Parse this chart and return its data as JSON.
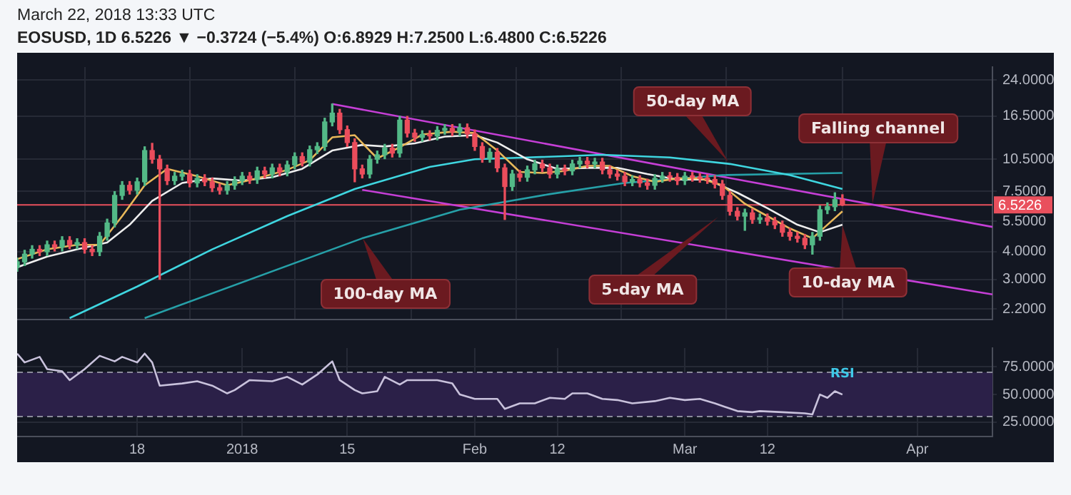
{
  "chart_data": [
    {
      "type": "candlestick",
      "title": "EOSUSD, 1D 6.5226 ▼ −0.3724 (−5.4%) O:6.8929 H:7.2500 L:6.4800 C:6.5226",
      "subtitle": "March 22, 2018 13:33 UTC",
      "log": true,
      "grid": true,
      "tick_labels": "y",
      "xlim": [
        "2017-12-02",
        "2018-04-11"
      ],
      "xticks": [
        {
          "value": "2017-12-18",
          "label": null
        },
        {
          "value": "2018-01-01",
          "label": null
        },
        {
          "value": "2018-01-15",
          "label": null
        },
        {
          "value": "2018-02-01",
          "label": null
        },
        {
          "value": "2018-02-12",
          "label": null
        },
        {
          "value": "2018-03-01",
          "label": null
        },
        {
          "value": "2018-03-12",
          "label": null
        },
        {
          "value": "2018-04-01",
          "label": null
        }
      ],
      "ylim": [
        1.97,
        27.5
      ],
      "yticks": [
        {
          "value": 24,
          "label": "24.0000"
        },
        {
          "value": 16.5,
          "label": "16.5000"
        },
        {
          "value": 10.5,
          "label": "10.5000"
        },
        {
          "value": 7.5,
          "label": "7.5000"
        },
        {
          "value": 5.5,
          "label": "5.5000"
        },
        {
          "value": 4,
          "label": "4.0000"
        },
        {
          "value": 3,
          "label": "3.0000"
        },
        {
          "value": 2.2,
          "label": "2.2000"
        }
      ],
      "ref_lines": [
        {
          "axis": "y",
          "value": 6.5226,
          "label": "6.5226",
          "color": "#e9505d"
        }
      ],
      "annotations": [
        "50-day MA",
        {
          "text": "Falling channel",
          "x": "2018-03-26",
          "y": 6.6
        },
        {
          "text": "100-day MA",
          "x": "2018-01-17",
          "y": 4.6
        },
        "5-day MA",
        {
          "text": "10-day MA",
          "x": "2018-03-22",
          "y": 5.3
        }
      ],
      "series": [
        {
          "type": "candlestick",
          "x": [
            "2017-12-02",
            "2017-12-03",
            "2017-12-04",
            "2017-12-05",
            "2017-12-06",
            "2017-12-07",
            "2017-12-08",
            "2017-12-09",
            "2017-12-10",
            "2017-12-11",
            "2017-12-12",
            "2017-12-13",
            "2017-12-14",
            "2017-12-15",
            "2017-12-16",
            "2017-12-17",
            "2017-12-18",
            "2017-12-19",
            "2017-12-20",
            "2017-12-21",
            "2017-12-22",
            "2017-12-23",
            "2017-12-24",
            "2017-12-25",
            "2017-12-26",
            "2017-12-27",
            "2017-12-28",
            "2017-12-29",
            "2017-12-30",
            "2017-12-31",
            "2018-01-01",
            "2018-01-02",
            "2018-01-03",
            "2018-01-04",
            "2018-01-05",
            "2018-01-06",
            "2018-01-07",
            "2018-01-08",
            "2018-01-09",
            "2018-01-10",
            "2018-01-11",
            "2018-01-12",
            "2018-01-13",
            "2018-01-14",
            "2018-01-15",
            "2018-01-16",
            "2018-01-17",
            "2018-01-18",
            "2018-01-19",
            "2018-01-20",
            "2018-01-21",
            "2018-01-22",
            "2018-01-23",
            "2018-01-24",
            "2018-01-25",
            "2018-01-26",
            "2018-01-27",
            "2018-01-28",
            "2018-01-29",
            "2018-01-30",
            "2018-01-31",
            "2018-02-01",
            "2018-02-02",
            "2018-02-03",
            "2018-02-04",
            "2018-02-05",
            "2018-02-06",
            "2018-02-07",
            "2018-02-08",
            "2018-02-09",
            "2018-02-10",
            "2018-02-11",
            "2018-02-12",
            "2018-02-13",
            "2018-02-14",
            "2018-02-15",
            "2018-02-16",
            "2018-02-17",
            "2018-02-18",
            "2018-02-19",
            "2018-02-20",
            "2018-02-21",
            "2018-02-22",
            "2018-02-23",
            "2018-02-24",
            "2018-02-25",
            "2018-02-26",
            "2018-02-27",
            "2018-02-28",
            "2018-03-01",
            "2018-03-02",
            "2018-03-03",
            "2018-03-04",
            "2018-03-05",
            "2018-03-06",
            "2018-03-07",
            "2018-03-08",
            "2018-03-09",
            "2018-03-10",
            "2018-03-11",
            "2018-03-12",
            "2018-03-13",
            "2018-03-14",
            "2018-03-15",
            "2018-03-16",
            "2018-03-17",
            "2018-03-18",
            "2018-03-19",
            "2018-03-20",
            "2018-03-21",
            "2018-03-22"
          ],
          "ohlc": [
            [
              3.4,
              3.74,
              3.26,
              3.6
            ],
            [
              3.6,
              4.06,
              3.46,
              3.9
            ],
            [
              3.9,
              4.26,
              3.74,
              4.1
            ],
            [
              4.1,
              4.26,
              3.84,
              4.0
            ],
            [
              4.0,
              4.47,
              3.84,
              4.3
            ],
            [
              4.3,
              4.47,
              4.03,
              4.2
            ],
            [
              4.2,
              4.68,
              4.03,
              4.5
            ],
            [
              4.5,
              4.68,
              4.13,
              4.3
            ],
            [
              4.3,
              4.58,
              4.13,
              4.4
            ],
            [
              4.4,
              4.58,
              3.94,
              4.1
            ],
            [
              4.1,
              4.26,
              3.84,
              4.0
            ],
            [
              4.0,
              4.89,
              3.84,
              4.7
            ],
            [
              4.7,
              5.62,
              4.51,
              5.4
            ],
            [
              5.4,
              7.49,
              5.18,
              7.2
            ],
            [
              7.2,
              8.32,
              6.91,
              8.0
            ],
            [
              8.0,
              8.32,
              7.3,
              7.6
            ],
            [
              7.6,
              8.63,
              7.3,
              8.3
            ],
            [
              8.3,
              11.96,
              7.97,
              11.5
            ],
            [
              11.5,
              12.4,
              10.08,
              10.5
            ],
            [
              10.5,
              10.92,
              3.0,
              9.5
            ],
            [
              9.5,
              9.88,
              8.06,
              8.4
            ],
            [
              8.4,
              9.15,
              8.06,
              8.8
            ],
            [
              8.8,
              9.36,
              8.45,
              9.0
            ],
            [
              9.0,
              9.36,
              7.87,
              8.2
            ],
            [
              8.2,
              8.94,
              7.87,
              8.6
            ],
            [
              8.6,
              8.94,
              7.97,
              8.3
            ],
            [
              8.3,
              8.63,
              7.49,
              7.8
            ],
            [
              7.8,
              8.11,
              7.3,
              7.6
            ],
            [
              7.6,
              8.32,
              7.3,
              8.0
            ],
            [
              8.0,
              8.74,
              7.68,
              8.4
            ],
            [
              8.4,
              9.15,
              8.06,
              8.8
            ],
            [
              8.8,
              9.15,
              8.16,
              8.5
            ],
            [
              8.5,
              9.67,
              8.16,
              9.3
            ],
            [
              9.3,
              9.67,
              8.64,
              9.0
            ],
            [
              9.0,
              9.98,
              8.64,
              9.6
            ],
            [
              9.6,
              9.98,
              8.83,
              9.2
            ],
            [
              9.2,
              10.3,
              8.83,
              9.9
            ],
            [
              9.9,
              11.23,
              9.5,
              10.8
            ],
            [
              10.8,
              11.23,
              9.79,
              10.2
            ],
            [
              10.2,
              12.06,
              9.79,
              11.6
            ],
            [
              11.6,
              12.48,
              11.14,
              12.0
            ],
            [
              12.0,
              16.12,
              11.52,
              15.5
            ],
            [
              15.5,
              18.7,
              14.88,
              17.0
            ],
            [
              17.0,
              17.68,
              13.73,
              14.3
            ],
            [
              14.3,
              14.87,
              12.0,
              12.5
            ],
            [
              12.5,
              13.0,
              8.3,
              9.5
            ],
            [
              9.5,
              9.88,
              8.64,
              9.0
            ],
            [
              9.0,
              10.92,
              8.64,
              10.5
            ],
            [
              10.5,
              11.44,
              10.08,
              11.0
            ],
            [
              11.0,
              12.27,
              10.56,
              11.8
            ],
            [
              11.8,
              12.27,
              10.75,
              11.2
            ],
            [
              11.2,
              16.43,
              10.75,
              15.8
            ],
            [
              15.8,
              16.43,
              13.25,
              13.8
            ],
            [
              13.8,
              14.35,
              12.67,
              13.2
            ],
            [
              13.2,
              14.14,
              12.67,
              13.6
            ],
            [
              13.6,
              14.14,
              12.86,
              13.4
            ],
            [
              13.4,
              14.77,
              12.86,
              14.2
            ],
            [
              14.2,
              15.08,
              13.63,
              14.5
            ],
            [
              14.5,
              15.08,
              13.44,
              14.0
            ],
            [
              14.0,
              15.18,
              13.44,
              14.6
            ],
            [
              14.6,
              15.18,
              13.15,
              13.7
            ],
            [
              13.7,
              14.25,
              11.52,
              12.0
            ],
            [
              12.0,
              12.48,
              10.18,
              10.6
            ],
            [
              10.6,
              11.75,
              10.18,
              11.3
            ],
            [
              11.3,
              11.75,
              9.22,
              9.6
            ],
            [
              9.6,
              9.98,
              5.6,
              7.9
            ],
            [
              7.9,
              9.36,
              7.58,
              9.0
            ],
            [
              9.0,
              9.36,
              8.35,
              8.7
            ],
            [
              8.7,
              9.78,
              8.35,
              9.4
            ],
            [
              9.4,
              10.4,
              9.02,
              10.0
            ],
            [
              10.0,
              10.4,
              9.22,
              9.6
            ],
            [
              9.6,
              9.98,
              8.64,
              9.0
            ],
            [
              9.0,
              9.88,
              8.64,
              9.5
            ],
            [
              9.5,
              9.88,
              8.93,
              9.3
            ],
            [
              9.3,
              10.4,
              8.93,
              10.0
            ],
            [
              10.0,
              10.71,
              9.6,
              10.3
            ],
            [
              10.3,
              10.71,
              9.6,
              10.0
            ],
            [
              10.0,
              10.61,
              9.6,
              10.2
            ],
            [
              10.2,
              10.61,
              9.02,
              9.4
            ],
            [
              9.4,
              9.78,
              8.64,
              9.0
            ],
            [
              9.0,
              9.36,
              8.45,
              8.8
            ],
            [
              8.8,
              9.15,
              7.97,
              8.3
            ],
            [
              8.3,
              8.84,
              7.97,
              8.5
            ],
            [
              8.5,
              8.84,
              7.87,
              8.2
            ],
            [
              8.2,
              8.53,
              7.68,
              8.0
            ],
            [
              8.0,
              8.94,
              7.68,
              8.6
            ],
            [
              8.6,
              9.15,
              8.26,
              8.8
            ],
            [
              8.8,
              9.15,
              8.35,
              8.7
            ],
            [
              8.7,
              9.05,
              8.06,
              8.4
            ],
            [
              8.4,
              9.15,
              8.06,
              8.8
            ],
            [
              8.8,
              9.15,
              8.35,
              8.7
            ],
            [
              8.7,
              9.05,
              8.26,
              8.6
            ],
            [
              8.6,
              8.94,
              8.16,
              8.5
            ],
            [
              8.5,
              8.84,
              7.78,
              8.1
            ],
            [
              8.1,
              8.42,
              6.91,
              7.2
            ],
            [
              7.2,
              7.49,
              5.86,
              6.1
            ],
            [
              6.1,
              6.34,
              5.57,
              5.8
            ],
            [
              5.8,
              6.24,
              5.0,
              6.0
            ],
            [
              6.0,
              6.24,
              5.38,
              5.6
            ],
            [
              5.6,
              5.93,
              5.38,
              5.7
            ],
            [
              5.7,
              5.93,
              5.28,
              5.5
            ],
            [
              5.5,
              5.72,
              5.09,
              5.3
            ],
            [
              5.3,
              5.51,
              4.7,
              4.9
            ],
            [
              4.9,
              5.1,
              4.51,
              4.7
            ],
            [
              4.7,
              4.89,
              4.42,
              4.6
            ],
            [
              4.6,
              4.78,
              4.13,
              4.3
            ],
            [
              4.3,
              4.89,
              3.9,
              4.7
            ],
            [
              4.7,
              6.45,
              4.51,
              6.2
            ],
            [
              6.2,
              6.66,
              5.95,
              6.4
            ],
            [
              6.4,
              7.4,
              6.14,
              6.8929
            ],
            [
              6.8929,
              7.25,
              6.48,
              6.5226
            ]
          ],
          "colors": [
            "#53b987",
            "#53b987",
            "#53b987",
            "#eb4d5c",
            "#53b987",
            "#eb4d5c",
            "#53b987",
            "#eb4d5c",
            "#53b987",
            "#eb4d5c",
            "#eb4d5c",
            "#53b987",
            "#53b987",
            "#53b987",
            "#53b987",
            "#eb4d5c",
            "#53b987",
            "#53b987",
            "#eb4d5c",
            "#eb4d5c",
            "#eb4d5c",
            "#53b987",
            "#53b987",
            "#eb4d5c",
            "#53b987",
            "#eb4d5c",
            "#eb4d5c",
            "#eb4d5c",
            "#53b987",
            "#53b987",
            "#53b987",
            "#eb4d5c",
            "#53b987",
            "#eb4d5c",
            "#53b987",
            "#eb4d5c",
            "#53b987",
            "#53b987",
            "#eb4d5c",
            "#53b987",
            "#53b987",
            "#53b987",
            "#53b987",
            "#eb4d5c",
            "#eb4d5c",
            "#eb4d5c",
            "#eb4d5c",
            "#53b987",
            "#53b987",
            "#53b987",
            "#eb4d5c",
            "#53b987",
            "#eb4d5c",
            "#eb4d5c",
            "#53b987",
            "#eb4d5c",
            "#53b987",
            "#53b987",
            "#eb4d5c",
            "#53b987",
            "#eb4d5c",
            "#eb4d5c",
            "#eb4d5c",
            "#53b987",
            "#eb4d5c",
            "#eb4d5c",
            "#53b987",
            "#eb4d5c",
            "#53b987",
            "#53b987",
            "#eb4d5c",
            "#eb4d5c",
            "#53b987",
            "#eb4d5c",
            "#53b987",
            "#53b987",
            "#eb4d5c",
            "#53b987",
            "#eb4d5c",
            "#eb4d5c",
            "#eb4d5c",
            "#eb4d5c",
            "#53b987",
            "#eb4d5c",
            "#eb4d5c",
            "#53b987",
            "#53b987",
            "#eb4d5c",
            "#eb4d5c",
            "#53b987",
            "#eb4d5c",
            "#eb4d5c",
            "#eb4d5c",
            "#eb4d5c",
            "#eb4d5c",
            "#eb4d5c",
            "#eb4d5c",
            "#53b987",
            "#eb4d5c",
            "#53b987",
            "#eb4d5c",
            "#eb4d5c",
            "#eb4d5c",
            "#eb4d5c",
            "#eb4d5c",
            "#eb4d5c",
            "#53b987",
            "#53b987",
            "#53b987",
            "#53b987",
            "#eb4d5c"
          ]
        },
        {
          "type": "line",
          "color": "#e8b85a",
          "x": [
            "2017-12-02",
            "2017-12-06",
            "2017-12-10",
            "2017-12-13",
            "2017-12-16",
            "2017-12-19",
            "2017-12-22",
            "2017-12-26",
            "2017-12-30",
            "2018-01-03",
            "2018-01-07",
            "2018-01-10",
            "2018-01-13",
            "2018-01-16",
            "2018-01-19",
            "2018-01-22",
            "2018-01-25",
            "2018-01-29",
            "2018-02-01",
            "2018-02-04",
            "2018-02-07",
            "2018-02-10",
            "2018-02-13",
            "2018-02-16",
            "2018-02-19",
            "2018-02-22",
            "2018-02-25",
            "2018-02-28",
            "2018-03-03",
            "2018-03-06",
            "2018-03-09",
            "2018-03-12",
            "2018-03-15",
            "2018-03-18",
            "2018-03-20",
            "2018-03-22"
          ],
          "values": [
            3.7,
            4.1,
            4.3,
            4.3,
            5.8,
            8.0,
            9.5,
            8.8,
            8.0,
            8.6,
            9.4,
            10.4,
            13.2,
            13.5,
            10.6,
            11.9,
            13.6,
            14.0,
            13.8,
            11.5,
            9.2,
            9.1,
            9.3,
            9.8,
            9.8,
            8.8,
            8.3,
            8.6,
            8.6,
            8.0,
            6.6,
            5.8,
            5.1,
            4.6,
            5.3,
            6.1
          ]
        },
        {
          "type": "line",
          "color": "#eeeeee",
          "x": [
            "2017-12-02",
            "2017-12-06",
            "2017-12-10",
            "2017-12-14",
            "2017-12-17",
            "2017-12-20",
            "2017-12-24",
            "2017-12-28",
            "2018-01-01",
            "2018-01-05",
            "2018-01-09",
            "2018-01-13",
            "2018-01-17",
            "2018-01-20",
            "2018-01-24",
            "2018-01-28",
            "2018-02-01",
            "2018-02-04",
            "2018-02-08",
            "2018-02-12",
            "2018-02-16",
            "2018-02-20",
            "2018-02-24",
            "2018-02-28",
            "2018-03-04",
            "2018-03-08",
            "2018-03-12",
            "2018-03-16",
            "2018-03-19",
            "2018-03-22"
          ],
          "values": [
            3.4,
            3.8,
            4.1,
            4.4,
            5.3,
            6.8,
            8.2,
            8.6,
            8.4,
            8.7,
            9.5,
            11.5,
            12.2,
            12.0,
            12.4,
            13.3,
            13.5,
            12.5,
            10.5,
            9.5,
            9.6,
            9.6,
            9.0,
            8.5,
            8.5,
            7.4,
            6.3,
            5.3,
            4.9,
            5.3
          ]
        },
        {
          "type": "line",
          "color": "#3fd6e0",
          "x": [
            "2017-12-09",
            "2017-12-18",
            "2017-12-28",
            "2018-01-07",
            "2018-01-16",
            "2018-01-26",
            "2018-02-01",
            "2018-02-08",
            "2018-02-18",
            "2018-02-27",
            "2018-03-07",
            "2018-03-15",
            "2018-03-22"
          ],
          "values": [
            2.0,
            2.78,
            4.1,
            5.8,
            7.7,
            9.7,
            10.5,
            10.7,
            11.0,
            10.7,
            10.0,
            8.9,
            7.7
          ]
        },
        {
          "type": "line",
          "color": "#26a0a8",
          "x": [
            "2017-12-19",
            "2018-01-17",
            "2018-01-30",
            "2018-02-11",
            "2018-02-21",
            "2018-03-06",
            "2018-03-22"
          ],
          "values": [
            2.0,
            4.6,
            6.2,
            7.3,
            8.2,
            8.9,
            9.1
          ]
        },
        {
          "type": "line",
          "color": "#c53fd6",
          "x": [
            "2018-01-13",
            "2018-04-11"
          ],
          "values": [
            18.7,
            5.18
          ]
        },
        {
          "type": "line",
          "color": "#c53fd6",
          "x": [
            "2018-01-17",
            "2018-04-11"
          ],
          "values": [
            7.63,
            2.56
          ]
        }
      ]
    },
    {
      "type": "line",
      "grid": true,
      "xlim": [
        "2017-12-02",
        "2018-04-11"
      ],
      "xticks": [
        {
          "value": "2017-12-18",
          "label": "18"
        },
        {
          "value": "2018-01-01",
          "label": "2018"
        },
        {
          "value": "2018-01-15",
          "label": "15"
        },
        {
          "value": "2018-02-01",
          "label": "Feb"
        },
        {
          "value": "2018-02-12",
          "label": "12"
        },
        {
          "value": "2018-03-01",
          "label": "Mar"
        },
        {
          "value": "2018-03-12",
          "label": "12"
        },
        {
          "value": "2018-04-01",
          "label": "Apr"
        }
      ],
      "ylim": [
        12,
        92
      ],
      "yticks": [
        {
          "value": 75,
          "label": "75.0000"
        },
        {
          "value": 50,
          "label": "50.0000"
        },
        {
          "value": 25,
          "label": "25.0000"
        }
      ],
      "bands": [
        {
          "axis": "y",
          "from": 30,
          "to": 70,
          "color": "#2b2048"
        }
      ],
      "ref_lines": [
        {
          "axis": "y",
          "value": 70,
          "line_style": "dashed",
          "color": "#8a8a9a"
        },
        {
          "axis": "y",
          "value": 30,
          "line_style": "dashed",
          "color": "#8a8a9a"
        }
      ],
      "series": [
        {
          "name": "RSI",
          "color": "#c9c2dc",
          "x": [
            "2017-12-02",
            "2017-12-03",
            "2017-12-05",
            "2017-12-06",
            "2017-12-08",
            "2017-12-09",
            "2017-12-11",
            "2017-12-13",
            "2017-12-15",
            "2017-12-16",
            "2017-12-18",
            "2017-12-19",
            "2017-12-20",
            "2017-12-21",
            "2017-12-24",
            "2017-12-26",
            "2017-12-28",
            "2017-12-30",
            "2017-12-31",
            "2018-01-02",
            "2018-01-05",
            "2018-01-07",
            "2018-01-09",
            "2018-01-11",
            "2018-01-13",
            "2018-01-14",
            "2018-01-16",
            "2018-01-17",
            "2018-01-19",
            "2018-01-20",
            "2018-01-22",
            "2018-01-23",
            "2018-01-27",
            "2018-01-29",
            "2018-01-30",
            "2018-02-01",
            "2018-02-04",
            "2018-02-05",
            "2018-02-07",
            "2018-02-09",
            "2018-02-11",
            "2018-02-13",
            "2018-02-14",
            "2018-02-16",
            "2018-02-18",
            "2018-02-20",
            "2018-02-22",
            "2018-02-25",
            "2018-02-27",
            "2018-03-01",
            "2018-03-03",
            "2018-03-05",
            "2018-03-08",
            "2018-03-10",
            "2018-03-11",
            "2018-03-14",
            "2018-03-17",
            "2018-03-18",
            "2018-03-19",
            "2018-03-20",
            "2018-03-21",
            "2018-03-22"
          ],
          "values": [
            87,
            79,
            84,
            73,
            71,
            63,
            73,
            85,
            80,
            84,
            79,
            87,
            79,
            58,
            60,
            62,
            58,
            51,
            54,
            63,
            62,
            66,
            59,
            68,
            80,
            63,
            54,
            51,
            53,
            66,
            59,
            63,
            63,
            60,
            50,
            46,
            46,
            37,
            42,
            42,
            47,
            46,
            51,
            51,
            46,
            45,
            42,
            44,
            47,
            45,
            46,
            42,
            35,
            34,
            35,
            34,
            33,
            32,
            50,
            47,
            53,
            50
          ]
        }
      ]
    }
  ]
}
